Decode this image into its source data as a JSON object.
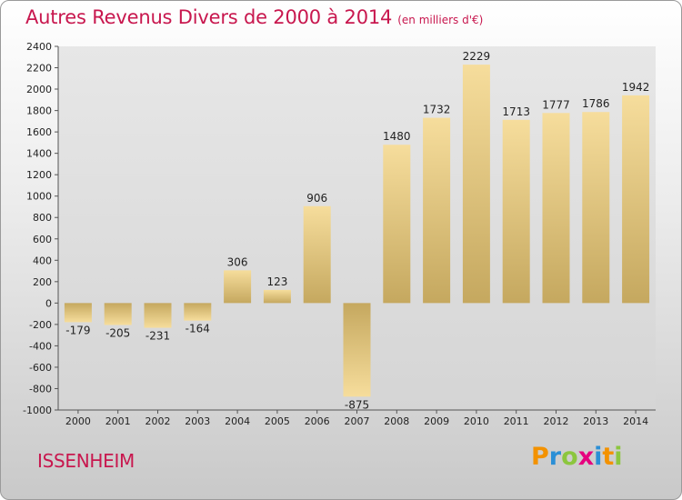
{
  "title": "Autres Revenus Divers de 2000 à 2014",
  "unit": "(en milliers d'€)",
  "city": "ISSENHEIM",
  "logo": {
    "text": "Proxiti",
    "letters": [
      {
        "ch": "P",
        "color": "#f39200"
      },
      {
        "ch": "r",
        "color": "#2b8fd6"
      },
      {
        "ch": "o",
        "color": "#8cc63e"
      },
      {
        "ch": "x",
        "color": "#e6007e"
      },
      {
        "ch": "i",
        "color": "#2b8fd6"
      },
      {
        "ch": "t",
        "color": "#f39200"
      },
      {
        "ch": "i",
        "color": "#8cc63e"
      }
    ]
  },
  "colors": {
    "accent": "#c8174e",
    "bar_light": "#f5dc9a",
    "bar_dark": "#c8aa62"
  },
  "chart_data": {
    "type": "bar",
    "title": "Autres Revenus Divers de 2000 à 2014",
    "categories": [
      "2000",
      "2001",
      "2002",
      "2003",
      "2004",
      "2005",
      "2006",
      "2007",
      "2008",
      "2009",
      "2010",
      "2011",
      "2012",
      "2013",
      "2014"
    ],
    "values": [
      -179,
      -205,
      -231,
      -164,
      306,
      123,
      906,
      -875,
      1480,
      1732,
      2229,
      1713,
      1777,
      1786,
      1942
    ],
    "ylim": [
      -1000,
      2400
    ],
    "yticks": [
      -1000,
      -800,
      -600,
      -400,
      -200,
      0,
      200,
      400,
      600,
      800,
      1000,
      1200,
      1400,
      1600,
      1800,
      2000,
      2200,
      2400
    ],
    "grid": false,
    "legend": "none"
  }
}
